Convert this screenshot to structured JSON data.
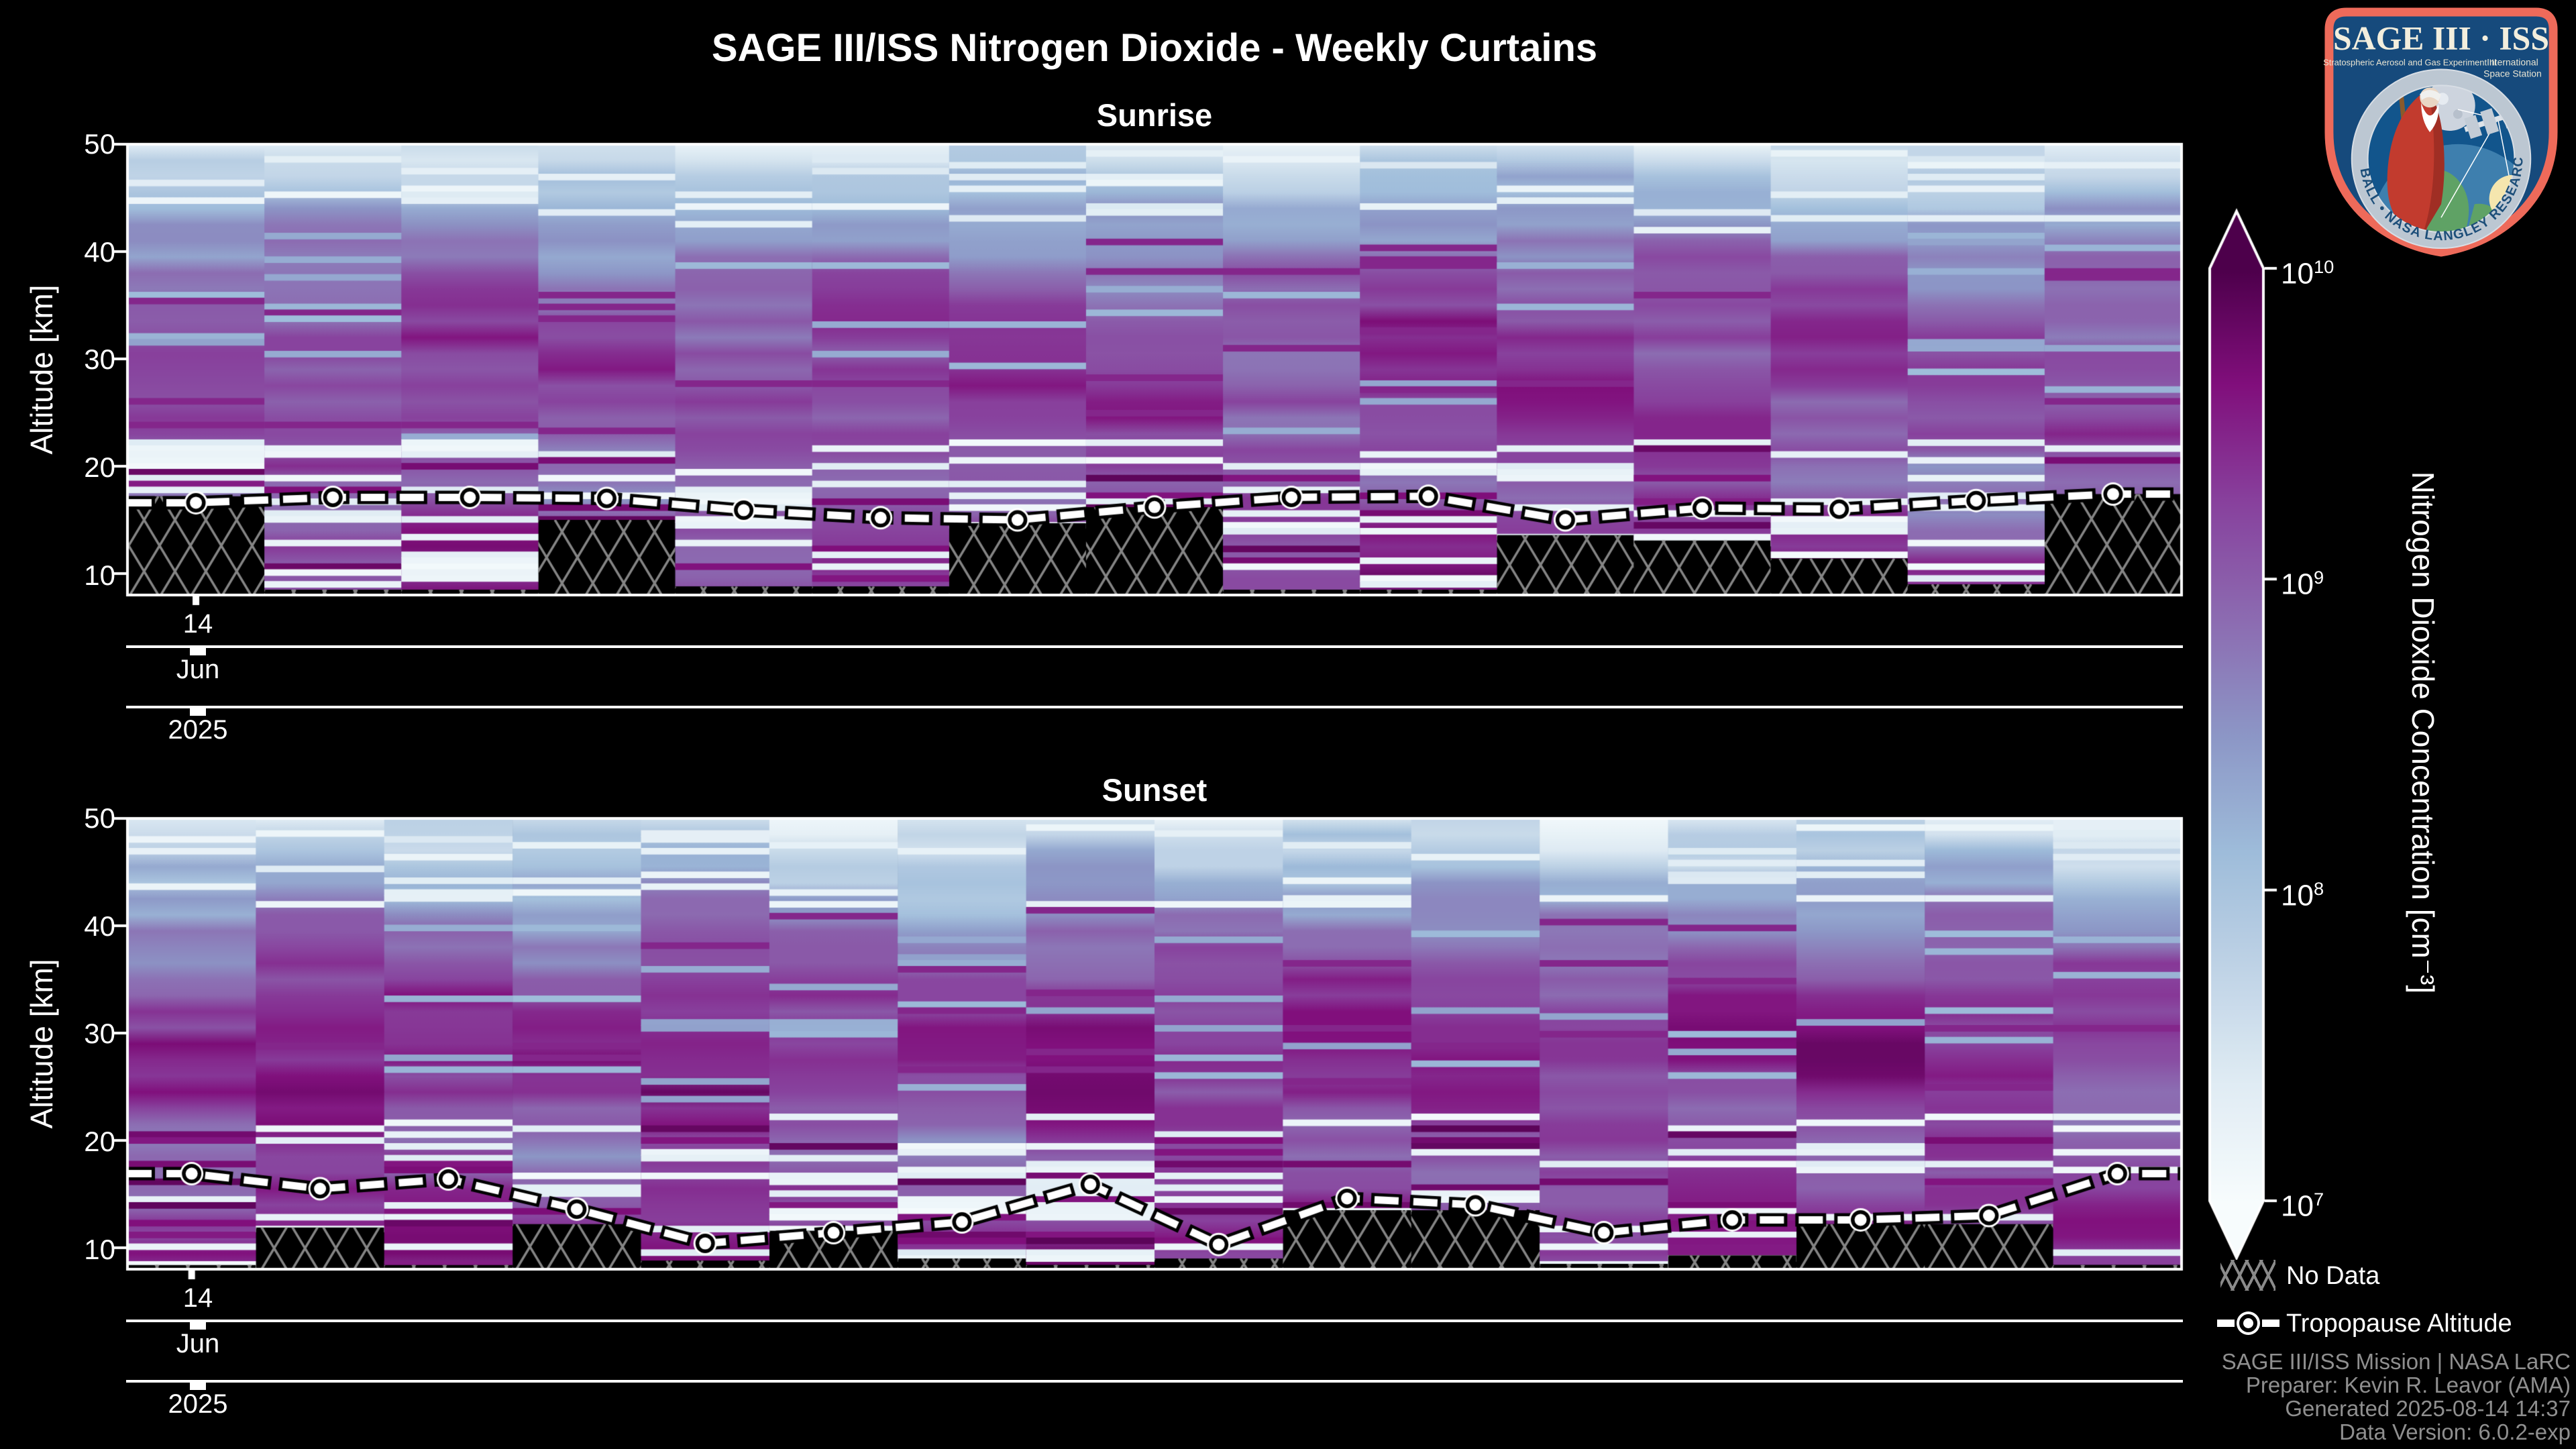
{
  "header": {
    "title": "SAGE III/ISS Nitrogen Dioxide - Weekly Curtains"
  },
  "colors": {
    "background": "#000000",
    "text": "#ffffff",
    "muted_text": "#8f8f8f",
    "spine": "#ffffff",
    "hatch_line": "#858585",
    "colormap_high": "#4d004b",
    "colormap_low": "#f7fcfd",
    "logo_border": "#ee6a5a",
    "logo_navy": "#164a7c"
  },
  "chart_data": [
    {
      "type": "heatmap",
      "title": "Sunrise",
      "ylabel": "Altitude [km]",
      "y_tick_labels": [
        "50",
        "40",
        "30",
        "20",
        "10"
      ],
      "y_range_km": [
        8,
        50
      ],
      "x_ticks": {
        "day": "14",
        "month": "Jun",
        "year": "2025"
      },
      "colorscale_log10_range": [
        7,
        10
      ],
      "n_columns": 15,
      "tropopause_km": [
        16.6,
        17.1,
        17.1,
        17.0,
        15.9,
        15.2,
        15.0,
        16.2,
        17.1,
        17.2,
        15.0,
        16.1,
        16.0,
        16.8,
        17.4
      ],
      "no_data_top_km": [
        17.2,
        8.5,
        8.5,
        15.0,
        8.8,
        8.8,
        14.7,
        16.2,
        8.5,
        8.5,
        13.6,
        13.1,
        11.4,
        9.0,
        17.4
      ],
      "profile": {
        "altitude_km": [
          8,
          10,
          12,
          14,
          16,
          18,
          20,
          22,
          24,
          26,
          28,
          30,
          32,
          34,
          36,
          38,
          40,
          42,
          44,
          46,
          48,
          50
        ],
        "log10_concentration": [
          9.45,
          9.4,
          9.3,
          9.2,
          9.05,
          8.95,
          9.0,
          9.1,
          9.18,
          9.24,
          9.26,
          9.24,
          9.2,
          9.12,
          9.0,
          8.88,
          8.72,
          8.5,
          8.25,
          8.0,
          7.75,
          7.55
        ]
      }
    },
    {
      "type": "heatmap",
      "title": "Sunset",
      "ylabel": "Altitude [km]",
      "y_tick_labels": [
        "50",
        "40",
        "30",
        "20",
        "10"
      ],
      "y_range_km": [
        8,
        50
      ],
      "x_ticks": {
        "day": "14",
        "month": "Jun",
        "year": "2025"
      },
      "colorscale_log10_range": [
        7,
        10
      ],
      "n_columns": 16,
      "tropopause_km": [
        16.9,
        15.5,
        16.4,
        13.6,
        10.4,
        11.4,
        12.4,
        15.9,
        10.3,
        14.6,
        14.0,
        11.4,
        12.6,
        12.6,
        13.0,
        16.9
      ],
      "no_data_top_km": [
        8.4,
        11.9,
        8.4,
        12.2,
        8.8,
        11.6,
        9.0,
        8.4,
        9.0,
        13.5,
        13.5,
        8.5,
        9.3,
        12.2,
        12.2,
        8.4
      ],
      "profile": {
        "altitude_km": [
          8,
          10,
          12,
          14,
          16,
          18,
          20,
          22,
          24,
          26,
          28,
          30,
          32,
          34,
          36,
          38,
          40,
          42,
          44,
          46,
          48,
          50
        ],
        "log10_concentration": [
          9.5,
          9.45,
          9.35,
          9.25,
          9.1,
          9.0,
          9.05,
          9.15,
          9.3,
          9.38,
          9.42,
          9.4,
          9.32,
          9.2,
          9.05,
          8.9,
          8.7,
          8.45,
          8.2,
          7.95,
          7.7,
          7.5
        ]
      }
    }
  ],
  "colorbar": {
    "label": "Nitrogen Dioxide Concentration [cm⁻³]",
    "tick_base": "10",
    "tick_exps": [
      "10",
      "9",
      "8",
      "7"
    ]
  },
  "legend": {
    "no_data": "No Data",
    "tropopause": "Tropopause Altitude"
  },
  "footer": {
    "lines": [
      "SAGE III/ISS Mission | NASA LaRC",
      "Preparer: Kevin R. Leavor (AMA)",
      "Generated 2025-08-14 14:37",
      "Data Version: 6.0.2-exp"
    ]
  },
  "logo": {
    "title": "SAGE III · ISS",
    "subtitle_left": "Stratospheric Aerosol and Gas Experiment III",
    "subtitle_right_1": "International",
    "subtitle_right_2": "Space Station",
    "ring_text": "BALL • NASA LANGLEY RESEARCH CENTER • TAS-I • ESA"
  }
}
